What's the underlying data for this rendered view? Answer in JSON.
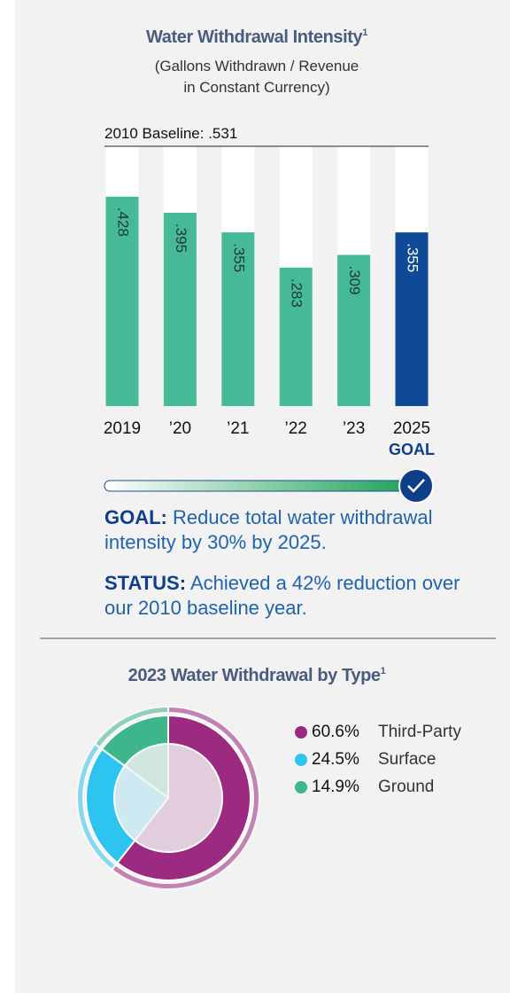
{
  "chart_data": [
    {
      "type": "bar",
      "title": "Water Withdrawal Intensity",
      "title_footnote": "1",
      "subtitle": [
        "(Gallons Withdrawn / Revenue",
        "in Constant Currency)"
      ],
      "baseline": 0.531,
      "baseline_label": "2010 Baseline: .531",
      "categories": [
        "2019",
        "’20",
        "’21",
        "’22",
        "’23",
        "2025"
      ],
      "goal_label": "GOAL",
      "values": [
        0.428,
        0.395,
        0.355,
        0.283,
        0.309,
        0.355
      ],
      "value_labels": [
        ".428",
        ".395",
        ".355",
        ".283",
        ".309",
        ".355"
      ],
      "colors": [
        "#46b997",
        "#46b997",
        "#46b997",
        "#46b997",
        "#46b997",
        "#0f4a96"
      ],
      "ylim": [
        0,
        0.531
      ]
    },
    {
      "type": "pie",
      "title": "2023 Water Withdrawal by Type",
      "title_footnote": "1",
      "categories": [
        "Third-Party",
        "Surface",
        "Ground"
      ],
      "values": [
        60.6,
        24.5,
        14.9
      ],
      "value_labels": [
        "60.6%",
        "24.5%",
        "14.9%"
      ],
      "colors": [
        "#9b2a80",
        "#2ec4f0",
        "#3db68c"
      ]
    }
  ],
  "goal": {
    "label": "GOAL:",
    "text": "Reduce total water withdrawal intensity by 30% by 2025."
  },
  "status": {
    "label": "STATUS:",
    "text": "Achieved a 42% reduction over our 2010 baseline year."
  }
}
